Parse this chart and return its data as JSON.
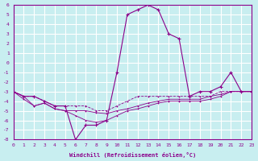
{
  "xlabel": "Windchill (Refroidissement éolien,°C)",
  "xlim": [
    0,
    23
  ],
  "ylim": [
    -8,
    6
  ],
  "yticks": [
    6,
    5,
    4,
    3,
    2,
    1,
    0,
    -1,
    -2,
    -3,
    -4,
    -5,
    -6,
    -7,
    -8
  ],
  "xticks": [
    0,
    1,
    2,
    3,
    4,
    5,
    6,
    7,
    8,
    9,
    10,
    11,
    12,
    13,
    14,
    15,
    16,
    17,
    18,
    19,
    20,
    21,
    22,
    23
  ],
  "bg_color": "#c8eef0",
  "grid_color": "#ffffff",
  "line_color": "#8b008b",
  "line1": [
    [
      0,
      -3
    ],
    [
      1,
      -3.5
    ],
    [
      2,
      -3.5
    ],
    [
      3,
      -4
    ],
    [
      4,
      -4.5
    ],
    [
      5,
      -4.5
    ],
    [
      6,
      -8
    ],
    [
      7,
      -6.5
    ],
    [
      8,
      -6.5
    ],
    [
      9,
      -6
    ],
    [
      10,
      -1
    ],
    [
      11,
      5
    ],
    [
      12,
      5.5
    ],
    [
      13,
      6
    ],
    [
      14,
      5.5
    ],
    [
      15,
      3
    ],
    [
      16,
      2.5
    ],
    [
      17,
      -3.5
    ],
    [
      18,
      -3
    ],
    [
      19,
      -3
    ],
    [
      20,
      -2.5
    ],
    [
      21,
      -1
    ],
    [
      22,
      -3
    ],
    [
      23,
      -3
    ]
  ],
  "line2": [
    [
      0,
      -3
    ],
    [
      1,
      -3.5
    ],
    [
      2,
      -3.5
    ],
    [
      3,
      -4
    ],
    [
      4,
      -4.5
    ],
    [
      5,
      -4.5
    ],
    [
      6,
      -4.5
    ],
    [
      7,
      -4.5
    ],
    [
      8,
      -5
    ],
    [
      9,
      -5
    ],
    [
      10,
      -4.5
    ],
    [
      11,
      -4
    ],
    [
      12,
      -3.5
    ],
    [
      13,
      -3.5
    ],
    [
      14,
      -3.5
    ],
    [
      15,
      -3.5
    ],
    [
      16,
      -3.5
    ],
    [
      17,
      -3.5
    ],
    [
      18,
      -3.5
    ],
    [
      19,
      -3.5
    ],
    [
      20,
      -3
    ],
    [
      21,
      -3
    ],
    [
      22,
      -3
    ],
    [
      23,
      -3
    ]
  ],
  "line3": [
    [
      0,
      -3
    ],
    [
      1,
      -3.8
    ],
    [
      2,
      -4.5
    ],
    [
      3,
      -4.2
    ],
    [
      4,
      -4.8
    ],
    [
      5,
      -5
    ],
    [
      6,
      -5
    ],
    [
      7,
      -5
    ],
    [
      8,
      -5.2
    ],
    [
      9,
      -5.3
    ],
    [
      10,
      -5
    ],
    [
      11,
      -4.8
    ],
    [
      12,
      -4.5
    ],
    [
      13,
      -4.2
    ],
    [
      14,
      -4
    ],
    [
      15,
      -3.8
    ],
    [
      16,
      -3.8
    ],
    [
      17,
      -3.8
    ],
    [
      18,
      -3.8
    ],
    [
      19,
      -3.5
    ],
    [
      20,
      -3.3
    ],
    [
      21,
      -3
    ],
    [
      22,
      -3
    ],
    [
      23,
      -3
    ]
  ],
  "line4": [
    [
      0,
      -3
    ],
    [
      1,
      -3.5
    ],
    [
      2,
      -4.5
    ],
    [
      3,
      -4.2
    ],
    [
      4,
      -4.8
    ],
    [
      5,
      -5
    ],
    [
      6,
      -5.5
    ],
    [
      7,
      -6
    ],
    [
      8,
      -6.2
    ],
    [
      9,
      -6
    ],
    [
      10,
      -5.5
    ],
    [
      11,
      -5
    ],
    [
      12,
      -4.8
    ],
    [
      13,
      -4.5
    ],
    [
      14,
      -4.2
    ],
    [
      15,
      -4
    ],
    [
      16,
      -4
    ],
    [
      17,
      -4
    ],
    [
      18,
      -4
    ],
    [
      19,
      -3.8
    ],
    [
      20,
      -3.5
    ],
    [
      21,
      -3
    ],
    [
      22,
      -3
    ],
    [
      23,
      -3
    ]
  ]
}
